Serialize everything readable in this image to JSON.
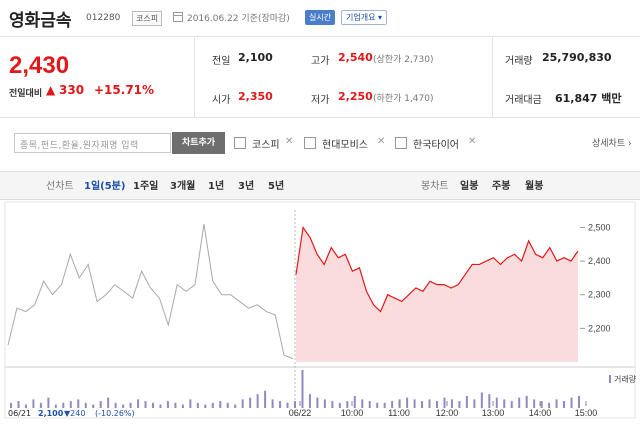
{
  "header": {
    "stock_name": "영화금속",
    "stock_code": "012280",
    "market": "코스피",
    "base_date": "2016.06.22 기준(장마감)",
    "realtime_label": "실시간",
    "company_overview_label": "기업개요 ▾"
  },
  "quote": {
    "price": "2,430",
    "change_label": "전일대비",
    "change_arrow": "▲",
    "change_value": "330",
    "change_pct": "+15.71%"
  },
  "stats": {
    "prev_close_label": "전일",
    "prev_close": "2,100",
    "high_label": "고가",
    "high": "2,540",
    "upper_limit": "(상한가 2,730)",
    "volume_label": "거래량",
    "volume": "25,790,830",
    "open_label": "시가",
    "open": "2,350",
    "low_label": "저가",
    "low": "2,250",
    "lower_limit": "(하한가 1,470)",
    "amount_label": "거래대금",
    "amount": "61,847 백만"
  },
  "compare": {
    "search_placeholder": "종목,펀드,환율,원자재명 입력",
    "add_button": "차트추가",
    "items": [
      {
        "label": "코스피"
      },
      {
        "label": "현대모비스"
      },
      {
        "label": "한국타이어"
      }
    ],
    "remove_glyph": "✕",
    "detail_link": "상세차트 ›"
  },
  "toolbar": {
    "line_chart": "선차트",
    "periods": [
      "1일(5분)",
      "1주일",
      "3개월",
      "1년",
      "3년",
      "5년"
    ],
    "candle_chart": "봉차트",
    "candle_periods": [
      "일봉",
      "주봉",
      "월봉"
    ]
  },
  "chart_data": {
    "type": "line",
    "y_ticks": [
      "2,500",
      "2,400",
      "2,300",
      "2,200"
    ],
    "ylim": [
      2100,
      2540
    ],
    "x_ticks": [
      "06/22",
      "10:00",
      "11:00",
      "12:00",
      "13:00",
      "14:00",
      "15:00"
    ],
    "volume_legend": "거래량",
    "series": [
      {
        "values": [
          2150,
          2260,
          2250,
          2270,
          2340,
          2300,
          2330,
          2420,
          2350,
          2390,
          2280,
          2300,
          2330,
          2310,
          2290,
          2370,
          2320,
          2290,
          2210,
          2330,
          2310,
          2330,
          2510,
          2340,
          2300,
          2300,
          2280,
          2260,
          2270,
          2250,
          2240,
          2120,
          2110
        ]
      },
      {
        "values": [
          2360,
          2500,
          2470,
          2420,
          2390,
          2440,
          2410,
          2420,
          2370,
          2380,
          2310,
          2270,
          2250,
          2300,
          2290,
          2280,
          2300,
          2320,
          2310,
          2340,
          2330,
          2330,
          2320,
          2330,
          2360,
          2390,
          2390,
          2400,
          2410,
          2390,
          2410,
          2420,
          2400,
          2460,
          2420,
          2410,
          2440,
          2400,
          2410,
          2400,
          2430
        ]
      }
    ],
    "colors": {
      "prev_day": "#a8a8a8",
      "today": "#e0181a",
      "fill": "#fbdcdc",
      "volume": "#9189bf"
    },
    "volume": [
      3,
      4,
      2,
      5,
      3,
      6,
      2,
      3,
      4,
      5,
      3,
      2,
      4,
      6,
      3,
      2,
      3,
      5,
      4,
      3,
      2,
      4,
      3,
      2,
      5,
      3,
      2,
      3,
      4,
      3,
      2,
      5,
      6,
      8,
      10,
      5,
      4,
      3,
      4,
      22,
      8,
      6,
      5,
      4,
      3,
      4,
      7,
      5,
      4,
      3,
      3,
      4,
      5,
      6,
      5,
      4,
      5,
      4,
      6,
      5,
      4,
      7,
      5,
      9,
      8,
      6,
      5,
      4,
      6,
      7,
      5,
      4,
      3,
      5,
      4,
      6,
      7
    ]
  },
  "bottom": {
    "prev_date": "06/21",
    "prev_price": "2,100",
    "prev_change": "▼240",
    "prev_pct": "(-10.26%)"
  }
}
